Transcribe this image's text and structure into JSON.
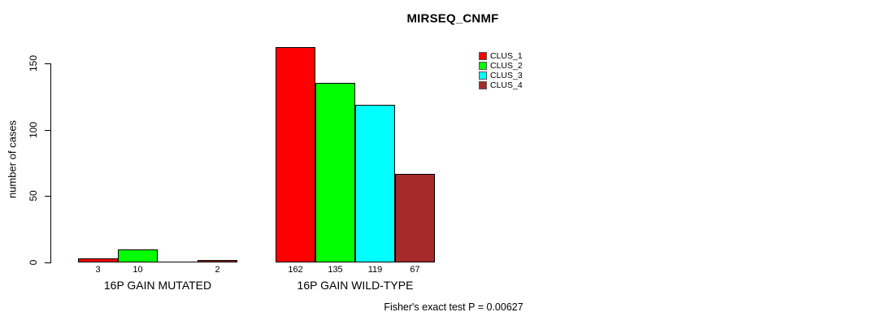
{
  "title": "MIRSEQ_CNMF",
  "footer": "Fisher's exact test P = 0.00627",
  "chart_data": {
    "type": "bar",
    "title": "MIRSEQ_CNMF",
    "xlabel": "",
    "ylabel": "number of cases",
    "categories": [
      "16P GAIN MUTATED",
      "16P GAIN WILD-TYPE"
    ],
    "series": [
      {
        "name": "CLUS_1",
        "color": "#ff0000",
        "values": [
          3,
          162
        ]
      },
      {
        "name": "CLUS_2",
        "color": "#00ff00",
        "values": [
          10,
          135
        ]
      },
      {
        "name": "CLUS_3",
        "color": "#00ffff",
        "values": [
          0,
          119
        ]
      },
      {
        "name": "CLUS_4",
        "color": "#a52a2a",
        "values": [
          2,
          67
        ]
      }
    ],
    "bar_value_labels": [
      [
        "3",
        "10",
        "",
        "2"
      ],
      [
        "162",
        "135",
        "119",
        "67"
      ]
    ],
    "ylim": [
      0,
      150
    ],
    "yticks": [
      0,
      50,
      100,
      150
    ],
    "grid": false,
    "legend_position": "top-right",
    "legend_entries": [
      "CLUS_1",
      "CLUS_2",
      "CLUS_3",
      "CLUS_4"
    ],
    "annotation": "Fisher's exact test P = 0.00627"
  }
}
